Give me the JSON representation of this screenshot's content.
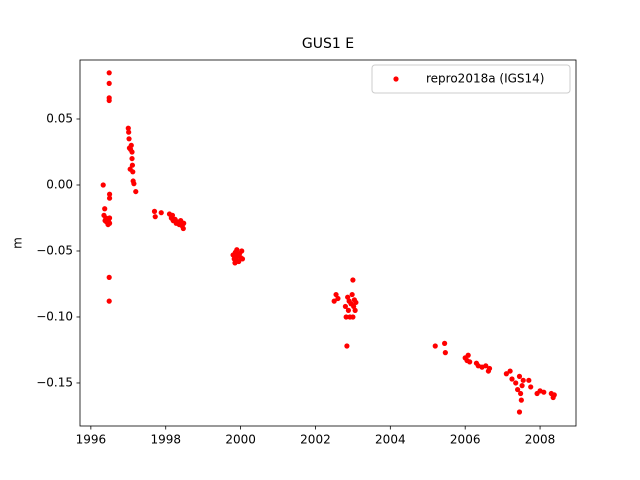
{
  "chart_data": {
    "type": "scatter",
    "title": "GUS1 E",
    "y_label": "m",
    "xlim": [
      1995.71,
      2008.96
    ],
    "ylim": [
      -0.1826,
      0.0947
    ],
    "xticks": [
      1996,
      1998,
      2000,
      2002,
      2004,
      2006,
      2008
    ],
    "yticks": [
      {
        "value": 0.05,
        "label": "0.05"
      },
      {
        "value": 0,
        "label": "0.00"
      },
      {
        "value": -0.05,
        "label": "−0.05"
      },
      {
        "value": -0.1,
        "label": "−0.10"
      },
      {
        "value": -0.15,
        "label": "−0.15"
      }
    ],
    "grid": false,
    "legend": "upper right",
    "series": [
      {
        "name": "repro2018a (IGS14)",
        "color": "#ff0000",
        "x": [
          1996.33,
          1996.35,
          1996.37,
          1996.38,
          1996.4,
          1996.42,
          1996.44,
          1996.46,
          1996.48,
          1996.5,
          1996.5,
          1996.49,
          1996.49,
          1996.49,
          1996.49,
          1996.5,
          1996.5,
          1996.49,
          1996.49,
          1997.0,
          1997.01,
          1997.02,
          1997.03,
          1997.05,
          1997.08,
          1997.1,
          1997.1,
          1997.11,
          1997.12,
          1997.13,
          1997.15,
          1997.2,
          1997.06,
          1997.7,
          1997.72,
          1997.88,
          1998.1,
          1998.15,
          1998.18,
          1998.2,
          1998.25,
          1998.28,
          1998.32,
          1998.36,
          1998.4,
          1998.44,
          1998.47,
          1998.48,
          1999.8,
          1999.83,
          1999.86,
          1999.88,
          1999.9,
          1999.92,
          1999.95,
          1999.97,
          2000.0,
          2000.03,
          2000.05,
          1999.85,
          2002.5,
          2002.55,
          2002.6,
          2002.8,
          2002.82,
          2002.84,
          2002.86,
          2002.88,
          2002.9,
          2002.92,
          2002.95,
          2002.98,
          2003.0,
          2003.02,
          2003.04,
          2003.06,
          2003.08,
          2003.0,
          2005.2,
          2005.45,
          2005.47,
          2006.0,
          2006.05,
          2006.08,
          2006.12,
          2006.3,
          2006.35,
          2006.45,
          2006.55,
          2006.62,
          2006.65,
          2007.1,
          2007.2,
          2007.25,
          2007.35,
          2007.4,
          2007.45,
          2007.48,
          2007.5,
          2007.45,
          2007.52,
          2007.55,
          2007.7,
          2007.75,
          2007.92,
          2008.0,
          2008.1,
          2008.3,
          2008.35,
          2008.38
        ],
        "values": [
          0.0,
          -0.023,
          -0.018,
          -0.027,
          -0.025,
          -0.028,
          -0.026,
          -0.03,
          -0.028,
          -0.025,
          -0.029,
          0.085,
          0.077,
          0.066,
          0.064,
          -0.007,
          -0.01,
          -0.07,
          -0.088,
          0.043,
          0.04,
          0.035,
          0.028,
          0.012,
          0.03,
          0.025,
          0.02,
          0.015,
          0.01,
          0.003,
          0.001,
          -0.005,
          0.027,
          -0.02,
          -0.024,
          -0.021,
          -0.022,
          -0.025,
          -0.023,
          -0.027,
          -0.026,
          -0.029,
          -0.028,
          -0.03,
          -0.027,
          -0.031,
          -0.033,
          -0.029,
          -0.053,
          -0.056,
          -0.051,
          -0.057,
          -0.049,
          -0.054,
          -0.058,
          -0.052,
          -0.055,
          -0.05,
          -0.056,
          -0.059,
          -0.088,
          -0.083,
          -0.086,
          -0.092,
          -0.1,
          -0.122,
          -0.085,
          -0.095,
          -0.088,
          -0.1,
          -0.09,
          -0.083,
          -0.072,
          -0.092,
          -0.087,
          -0.095,
          -0.089,
          -0.1,
          -0.122,
          -0.12,
          -0.127,
          -0.131,
          -0.133,
          -0.129,
          -0.134,
          -0.135,
          -0.137,
          -0.138,
          -0.137,
          -0.141,
          -0.139,
          -0.143,
          -0.141,
          -0.147,
          -0.15,
          -0.155,
          -0.145,
          -0.158,
          -0.163,
          -0.172,
          -0.152,
          -0.148,
          -0.148,
          -0.153,
          -0.158,
          -0.156,
          -0.157,
          -0.158,
          -0.161,
          -0.159
        ]
      }
    ]
  }
}
